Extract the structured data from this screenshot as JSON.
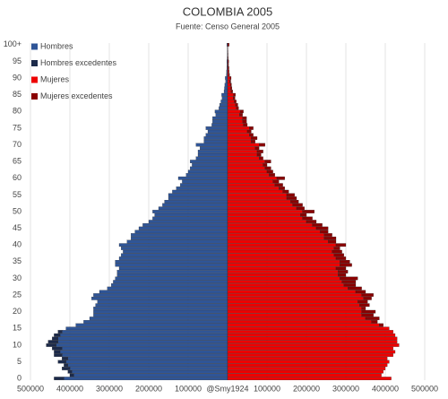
{
  "chart_data": {
    "type": "pyramid",
    "title": "COLOMBIA 2005",
    "subtitle": "Fuente: Censo General 2005",
    "categories": [
      "0",
      null,
      null,
      null,
      null,
      "5",
      null,
      null,
      null,
      null,
      "10",
      null,
      null,
      null,
      null,
      "15",
      null,
      null,
      null,
      null,
      "20",
      null,
      null,
      null,
      null,
      "25",
      null,
      null,
      null,
      null,
      "30",
      null,
      null,
      null,
      null,
      "35",
      null,
      null,
      null,
      null,
      "40",
      null,
      null,
      null,
      null,
      "45",
      null,
      null,
      null,
      null,
      "50",
      null,
      null,
      null,
      null,
      "55",
      null,
      null,
      null,
      null,
      "60",
      null,
      null,
      null,
      null,
      "65",
      null,
      null,
      null,
      null,
      "70",
      null,
      null,
      null,
      null,
      "75",
      null,
      null,
      null,
      null,
      "80",
      null,
      null,
      null,
      null,
      "85",
      null,
      null,
      null,
      null,
      "90",
      null,
      null,
      null,
      null,
      "95",
      null,
      null,
      null,
      null,
      "100+"
    ],
    "series": [
      {
        "name": "Hombres",
        "color": "#2f5597",
        "side": "left",
        "values": [
          415000,
          390000,
          395000,
          400000,
          405000,
          410000,
          405000,
          420000,
          425000,
          420000,
          435000,
          430000,
          430000,
          425000,
          420000,
          410000,
          385000,
          365000,
          350000,
          340000,
          340000,
          340000,
          335000,
          330000,
          345000,
          340000,
          325000,
          305000,
          295000,
          290000,
          285000,
          280000,
          280000,
          275000,
          285000,
          285000,
          275000,
          270000,
          265000,
          270000,
          275000,
          255000,
          245000,
          245000,
          235000,
          225000,
          215000,
          200000,
          190000,
          185000,
          190000,
          175000,
          165000,
          160000,
          150000,
          150000,
          140000,
          130000,
          120000,
          115000,
          125000,
          105000,
          100000,
          95000,
          90000,
          95000,
          80000,
          75000,
          75000,
          70000,
          80000,
          60000,
          60000,
          55000,
          50000,
          55000,
          40000,
          38000,
          38000,
          30000,
          32000,
          22000,
          20000,
          17000,
          14000,
          15000,
          9000,
          8000,
          7000,
          5000,
          6000,
          3000,
          2500,
          2000,
          1500,
          2000,
          1000,
          800,
          600,
          400,
          2000
        ]
      },
      {
        "name": "Hombres excedentes",
        "color": "#1c2a4a",
        "side": "left",
        "values": [
          25000,
          10000,
          10000,
          20000,
          10000,
          20000,
          15000,
          20000,
          15000,
          25000,
          25000,
          25000,
          15000,
          15000,
          10000,
          0,
          0,
          0,
          0,
          0,
          0,
          0,
          0,
          0,
          0,
          0,
          0,
          0,
          0,
          0,
          0,
          0,
          0,
          0,
          0,
          0,
          0,
          0,
          0,
          0,
          0,
          0,
          0,
          0,
          0,
          0,
          0,
          0,
          0,
          0,
          0,
          0,
          0,
          0,
          0,
          0,
          0,
          0,
          0,
          0,
          0,
          0,
          0,
          0,
          0,
          0,
          0,
          0,
          0,
          0,
          0,
          0,
          0,
          0,
          0,
          0,
          0,
          0,
          0,
          0,
          0,
          0,
          0,
          0,
          0,
          0,
          0,
          0,
          0,
          0,
          0,
          0,
          0,
          0,
          0,
          0,
          0,
          0,
          0,
          0,
          0
        ]
      },
      {
        "name": "Mujeres",
        "color": "#ee0000",
        "side": "right",
        "values": [
          415000,
          390000,
          395000,
          400000,
          405000,
          410000,
          405000,
          420000,
          425000,
          420000,
          435000,
          430000,
          430000,
          425000,
          420000,
          410000,
          385000,
          365000,
          350000,
          340000,
          340000,
          340000,
          335000,
          330000,
          345000,
          340000,
          325000,
          305000,
          295000,
          290000,
          285000,
          280000,
          280000,
          275000,
          285000,
          285000,
          275000,
          270000,
          265000,
          270000,
          275000,
          255000,
          245000,
          245000,
          235000,
          225000,
          215000,
          200000,
          190000,
          185000,
          190000,
          175000,
          165000,
          160000,
          150000,
          150000,
          140000,
          130000,
          120000,
          115000,
          125000,
          105000,
          100000,
          95000,
          90000,
          95000,
          80000,
          75000,
          75000,
          70000,
          80000,
          60000,
          60000,
          55000,
          50000,
          55000,
          40000,
          38000,
          38000,
          30000,
          32000,
          22000,
          20000,
          17000,
          14000,
          15000,
          9000,
          8000,
          7000,
          5000,
          6000,
          3000,
          2500,
          2000,
          1500,
          2000,
          1000,
          800,
          600,
          400,
          2000
        ]
      },
      {
        "name": "Mujeres excedentes",
        "color": "#8a0000",
        "side": "right",
        "values": [
          0,
          0,
          0,
          0,
          0,
          0,
          0,
          0,
          0,
          0,
          0,
          0,
          0,
          0,
          0,
          0,
          10000,
          15000,
          35000,
          30000,
          35000,
          10000,
          25000,
          25000,
          20000,
          30000,
          25000,
          35000,
          30000,
          35000,
          45000,
          20000,
          25000,
          25000,
          30000,
          25000,
          25000,
          25000,
          25000,
          15000,
          25000,
          20000,
          30000,
          20000,
          20000,
          30000,
          25000,
          25000,
          25000,
          15000,
          30000,
          20000,
          25000,
          20000,
          25000,
          20000,
          15000,
          15000,
          20000,
          15000,
          20000,
          15000,
          15000,
          15000,
          10000,
          15000,
          10000,
          10000,
          15000,
          10000,
          15000,
          10000,
          15000,
          10000,
          10000,
          10000,
          10000,
          10000,
          10000,
          8000,
          8000,
          6000,
          6000,
          5000,
          5000,
          5000,
          4000,
          3000,
          3000,
          3000,
          3000,
          2000,
          1500,
          1500,
          1000,
          1000,
          500,
          400,
          400,
          300,
          2000
        ]
      }
    ],
    "xlim": [
      -500000,
      500000
    ],
    "xticks": [
      {
        "value": -500000,
        "label": "500000"
      },
      {
        "value": -400000,
        "label": "400000"
      },
      {
        "value": -300000,
        "label": "300000"
      },
      {
        "value": -200000,
        "label": "200000"
      },
      {
        "value": -100000,
        "label": "100000"
      },
      {
        "value": 0,
        "label": "@Smy1924"
      },
      100000,
      200000,
      300000,
      400000,
      500000
    ],
    "grid": true,
    "legend": "upper left"
  }
}
